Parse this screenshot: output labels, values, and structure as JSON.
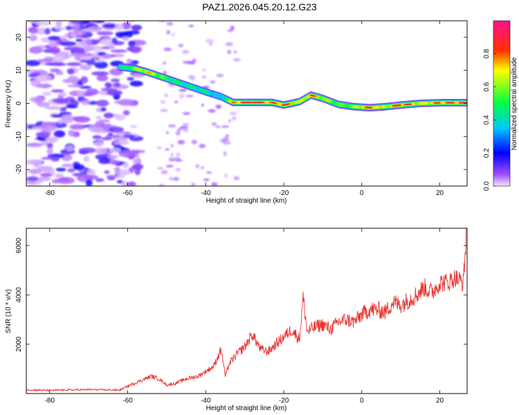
{
  "title": "PAZ1.2026.045.20.12.G23",
  "colors": {
    "snr_line": "#e8302c",
    "frame": "#000000",
    "background": "#ffffff"
  },
  "chart_data": [
    {
      "id": "spectrogram",
      "type": "heatmap",
      "title": "PAZ1.2026.045.20.12.G23",
      "xlabel": "Height of straight line (km)",
      "ylabel": "Frequency (Hz)",
      "xlim": [
        -86,
        27
      ],
      "ylim": [
        -25,
        25
      ],
      "xticks": [
        -80,
        -60,
        -40,
        -20,
        0,
        20
      ],
      "xtick_labels": [
        "-80",
        "-60",
        "-40",
        "-20",
        "0",
        "20"
      ],
      "yticks": [
        -20,
        -10,
        0,
        10,
        20
      ],
      "ytick_labels": [
        "-20",
        "-10",
        "0",
        "10",
        "20"
      ],
      "colorbar": {
        "label": "Normalized spectral amplitude",
        "range": [
          0,
          1
        ],
        "ticks": [
          0.0,
          0.2,
          0.4,
          0.6,
          0.8
        ],
        "tick_labels": [
          "0.0",
          "0.2",
          "0.4",
          "0.6",
          "0.8"
        ],
        "colormap": "hsv (purple-blue-cyan-green-yellow-red-magenta)"
      },
      "ridge": {
        "description": "dominant frequency trace vs height",
        "x": [
          -62,
          -58,
          -55,
          -50,
          -45,
          -40,
          -36,
          -33,
          -28,
          -23,
          -20,
          -16,
          -13,
          -10,
          -6,
          -2,
          2,
          6,
          10,
          15,
          20,
          27
        ],
        "freq_hz": [
          11,
          10.5,
          9.5,
          7.5,
          5.5,
          3.5,
          2,
          0.3,
          0.3,
          0.3,
          -0.5,
          0.5,
          2.5,
          1.5,
          -0.3,
          -1,
          -1.3,
          -1,
          -0.5,
          0,
          0.2,
          0.2
        ],
        "peak_amplitude": [
          0.35,
          0.55,
          0.7,
          0.45,
          0.4,
          0.4,
          0.3,
          0.7,
          0.9,
          0.7,
          0.8,
          0.6,
          0.75,
          0.6,
          0.5,
          0.55,
          0.8,
          0.6,
          0.85,
          0.6,
          0.75,
          0.8
        ]
      },
      "noise_region_x": [
        -85,
        -57
      ]
    },
    {
      "id": "snr",
      "type": "line",
      "xlabel": "Height of straight line (km)",
      "ylabel": "SNR (10 * v/v)",
      "xlim": [
        -86,
        27
      ],
      "ylim": [
        0,
        6700
      ],
      "xticks": [
        -80,
        -60,
        -40,
        -20,
        0,
        20
      ],
      "xtick_labels": [
        "-80",
        "-60",
        "-40",
        "-20",
        "0",
        "20"
      ],
      "yticks": [
        2000,
        4000,
        6000
      ],
      "ytick_labels": [
        "2000",
        "4000",
        "6000"
      ],
      "series": [
        {
          "name": "SNR",
          "x": [
            -86,
            -80,
            -70,
            -62,
            -60,
            -57,
            -54,
            -52,
            -50,
            -48,
            -45,
            -42,
            -40,
            -38,
            -36,
            -35,
            -34,
            -32,
            -30,
            -28,
            -26,
            -24,
            -22,
            -20,
            -18,
            -16,
            -15,
            -14,
            -12,
            -10,
            -8,
            -6,
            -4,
            -2,
            0,
            2,
            4,
            6,
            8,
            10,
            12,
            14,
            16,
            18,
            20,
            22,
            24,
            26,
            27
          ],
          "y": [
            150,
            130,
            160,
            140,
            300,
            500,
            700,
            600,
            350,
            400,
            600,
            700,
            900,
            1100,
            1800,
            700,
            1200,
            1600,
            1900,
            2400,
            1800,
            1700,
            2000,
            2300,
            2600,
            2200,
            3900,
            2500,
            2700,
            2800,
            2600,
            2900,
            3000,
            2900,
            3200,
            3400,
            3400,
            3300,
            3700,
            3600,
            3800,
            4000,
            4300,
            4100,
            4500,
            4500,
            4700,
            4500,
            6700
          ]
        }
      ]
    }
  ]
}
